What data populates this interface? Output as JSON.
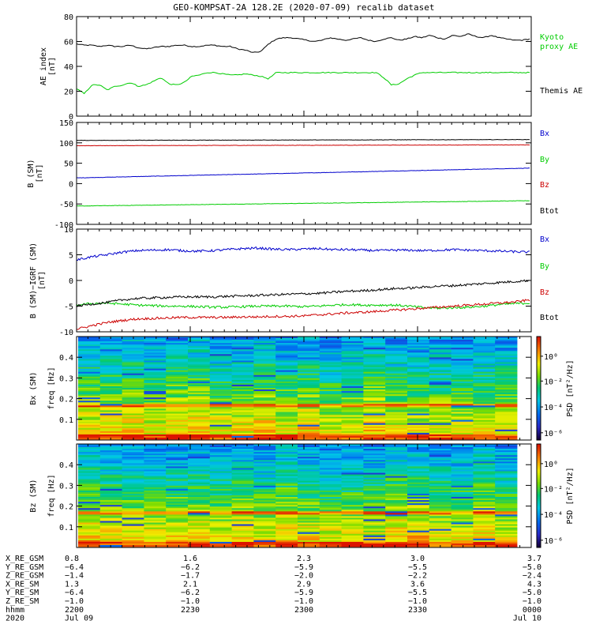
{
  "chart_data": {
    "title": "GEO-KOMPSAT-2A 128.2E (2020-07-09) recalib dataset",
    "panels": [
      {
        "id": "ae",
        "type": "line",
        "ylabel": [
          "AE index",
          "[nT]"
        ],
        "ylim": [
          0,
          80
        ],
        "yticks": [
          0,
          20,
          40,
          60,
          80
        ],
        "legend": [
          {
            "label": "Kyoto",
            "color": "#00cc00"
          },
          {
            "label": "proxy AE",
            "color": "#00cc00"
          },
          {
            "label": "Themis AE",
            "color": "#000000"
          }
        ],
        "series": [
          {
            "name": "Themis AE",
            "color": "#000000",
            "values": [
              58,
              57,
              57,
              56,
              57,
              56,
              56,
              57,
              55,
              54,
              55,
              56,
              56,
              57,
              57,
              56,
              56,
              57,
              57,
              56,
              56,
              54,
              53,
              51,
              52,
              58,
              62,
              63,
              63,
              62,
              61,
              60,
              61,
              63,
              62,
              61,
              62,
              63,
              61,
              60,
              62,
              63,
              61,
              62,
              64,
              63,
              65,
              63,
              62,
              65,
              64,
              66,
              64,
              63,
              65,
              63,
              62,
              61,
              61,
              62
            ]
          },
          {
            "name": "Kyoto proxy AE",
            "color": "#00cc00",
            "values": [
              22,
              18,
              25,
              25,
              21,
              24,
              25,
              27,
              24,
              25,
              28,
              31,
              26,
              25,
              27,
              32,
              33,
              35,
              35,
              34,
              33,
              33,
              34,
              33,
              32,
              30,
              35,
              35,
              35,
              35,
              35,
              35,
              35,
              35,
              35,
              35,
              35,
              35,
              35,
              35,
              31,
              25,
              26,
              30,
              33,
              35,
              35,
              35,
              35,
              35,
              35,
              35,
              35,
              35,
              35,
              35,
              35,
              35,
              35,
              35
            ]
          }
        ]
      },
      {
        "id": "bsm",
        "type": "line",
        "ylabel": [
          "B (SM)",
          "[nT]"
        ],
        "ylim": [
          -100,
          150
        ],
        "yticks": [
          -100,
          -50,
          0,
          50,
          100,
          150
        ],
        "legend": [
          {
            "label": "Bx",
            "color": "#0000cc"
          },
          {
            "label": "By",
            "color": "#00cc00"
          },
          {
            "label": "Bz",
            "color": "#cc0000"
          },
          {
            "label": "Btot",
            "color": "#000000"
          }
        ],
        "series": [
          {
            "name": "Bx",
            "color": "#0000cc",
            "start": 14,
            "end": 38
          },
          {
            "name": "By",
            "color": "#00cc00",
            "start": -55,
            "end": -42
          },
          {
            "name": "Bz",
            "color": "#cc0000",
            "start": 93,
            "end": 95
          },
          {
            "name": "Btot",
            "color": "#000000",
            "start": 106,
            "end": 108
          }
        ]
      },
      {
        "id": "bigrf",
        "type": "line",
        "ylabel": [
          "B (SM)−IGRF (SM)",
          "[nT]"
        ],
        "ylim": [
          -10,
          10
        ],
        "yticks": [
          -10,
          -5,
          0,
          5,
          10
        ],
        "legend": [
          {
            "label": "Bx",
            "color": "#0000cc"
          },
          {
            "label": "By",
            "color": "#00cc00"
          },
          {
            "label": "Bz",
            "color": "#cc0000"
          },
          {
            "label": "Btot",
            "color": "#000000"
          }
        ],
        "series": [
          {
            "name": "Bx",
            "color": "#0000cc",
            "values": [
              4.0,
              4.6,
              5.0,
              5.5,
              5.8,
              5.9,
              6.0,
              5.8,
              5.7,
              5.8,
              6.0,
              6.2,
              6.3,
              6.1,
              6.0,
              6.1,
              6.2,
              6.0,
              6.0,
              5.9,
              5.8,
              5.9,
              5.9,
              5.8,
              5.9,
              6.0,
              5.9,
              5.8,
              5.7,
              5.6,
              5.5
            ]
          },
          {
            "name": "By",
            "color": "#00cc00",
            "values": [
              -4.8,
              -4.5,
              -4.4,
              -4.6,
              -4.8,
              -4.9,
              -5.0,
              -5.0,
              -5.1,
              -5.2,
              -5.2,
              -5.1,
              -5.0,
              -5.0,
              -5.0,
              -5.1,
              -5.0,
              -4.8,
              -4.7,
              -4.8,
              -4.8,
              -4.8,
              -5.0,
              -5.3,
              -5.4,
              -5.3,
              -5.2,
              -5.0,
              -4.7,
              -4.5,
              -4.4
            ]
          },
          {
            "name": "Bz",
            "color": "#cc0000",
            "values": [
              -9.5,
              -8.8,
              -8.2,
              -7.8,
              -7.5,
              -7.4,
              -7.3,
              -7.2,
              -7.2,
              -7.2,
              -7.2,
              -7.1,
              -7.1,
              -7.0,
              -7.0,
              -6.9,
              -6.7,
              -6.5,
              -6.3,
              -6.2,
              -6.0,
              -5.8,
              -5.6,
              -5.4,
              -5.2,
              -5.0,
              -4.8,
              -4.6,
              -4.4,
              -4.2,
              -3.8
            ]
          },
          {
            "name": "Btot",
            "color": "#000000",
            "values": [
              -5.0,
              -4.6,
              -4.3,
              -3.8,
              -3.5,
              -3.4,
              -3.3,
              -3.2,
              -3.2,
              -3.2,
              -3.1,
              -3.0,
              -2.9,
              -2.8,
              -2.7,
              -2.6,
              -2.5,
              -2.3,
              -2.1,
              -2.0,
              -1.8,
              -1.6,
              -1.5,
              -1.3,
              -1.1,
              -1.0,
              -0.8,
              -0.6,
              -0.4,
              -0.2,
              0.0
            ]
          }
        ]
      },
      {
        "id": "bx_spec",
        "type": "heatmap",
        "ylabel": [
          "Bx (SM)",
          "freq [Hz]"
        ],
        "ylim": [
          0,
          0.5
        ],
        "yticks": [
          0.1,
          0.2,
          0.3,
          0.4
        ],
        "colorbar": {
          "label": "PSD [nT²/Hz]",
          "ticks": [
            "10⁰",
            "10⁻²",
            "10⁻⁴",
            "10⁻⁶"
          ]
        }
      },
      {
        "id": "bz_spec",
        "type": "heatmap",
        "ylabel": [
          "Bz (SM)",
          "freq [Hz]"
        ],
        "ylim": [
          0,
          0.5
        ],
        "yticks": [
          0.1,
          0.2,
          0.3,
          0.4
        ],
        "colorbar": {
          "label": "PSD [nT²/Hz]",
          "ticks": [
            "10⁰",
            "10⁻²",
            "10⁻⁴",
            "10⁻⁶"
          ]
        }
      }
    ],
    "ephemeris": {
      "rows": [
        {
          "label": "X_RE_GSM",
          "values": [
            "0.8",
            "1.6",
            "2.3",
            "3.0",
            "3.7"
          ]
        },
        {
          "label": "Y_RE_GSM",
          "values": [
            "−6.4",
            "−6.2",
            "−5.9",
            "−5.5",
            "−5.0"
          ]
        },
        {
          "label": "Z_RE_GSM",
          "values": [
            "−1.4",
            "−1.7",
            "−2.0",
            "−2.2",
            "−2.4"
          ]
        },
        {
          "label": "X_RE_SM",
          "values": [
            "1.3",
            "2.1",
            "2.9",
            "3.6",
            "4.3"
          ]
        },
        {
          "label": "Y_RE_SM",
          "values": [
            "−6.4",
            "−6.2",
            "−5.9",
            "−5.5",
            "−5.0"
          ]
        },
        {
          "label": "Z_RE_SM",
          "values": [
            "−1.0",
            "−1.0",
            "−1.0",
            "−1.0",
            "−1.0"
          ]
        },
        {
          "label": "hhmm",
          "values": [
            "2200",
            "2230",
            "2300",
            "2330",
            "0000"
          ]
        },
        {
          "label": "2020",
          "values": [
            "Jul 09",
            "",
            "",
            "",
            "Jul 10"
          ]
        }
      ]
    }
  }
}
